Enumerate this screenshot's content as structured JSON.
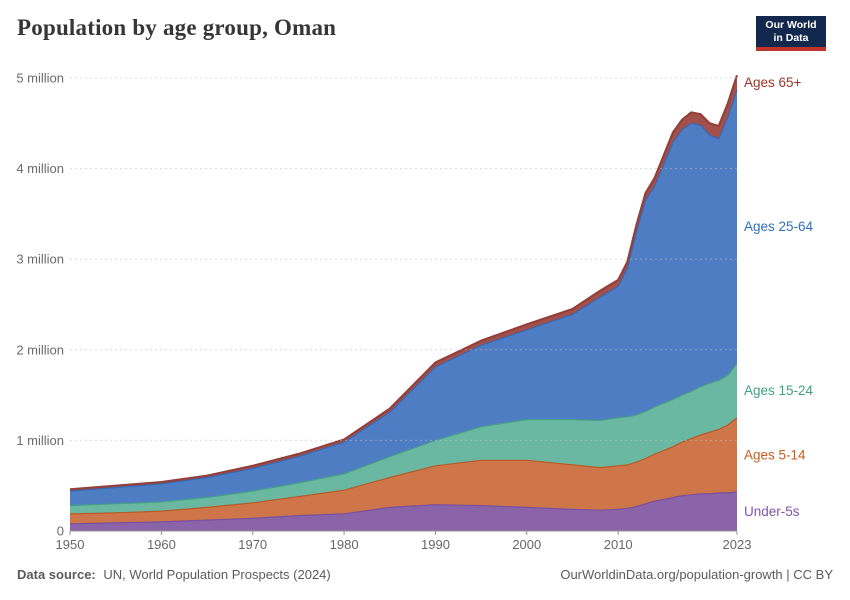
{
  "header": {
    "title": "Population by age group, Oman"
  },
  "logo": {
    "line1": "Our World",
    "line2": "in Data",
    "bg_color": "#12294d",
    "bar_color": "#c0332b"
  },
  "footer": {
    "source_label": "Data source:",
    "source_text": " UN, World Population Prospects (2024)",
    "credit": "OurWorldinData.org/population-growth | CC BY"
  },
  "chart_data": {
    "type": "area",
    "stacked": true,
    "title": "Population by age group, Oman",
    "unit": "people (millions)",
    "grid": "dashed horizontal",
    "legend_position": "right edge labels",
    "xlim": [
      1950,
      2023
    ],
    "ylim": [
      0,
      5.2
    ],
    "x": [
      1950,
      1955,
      1960,
      1965,
      1970,
      1975,
      1980,
      1985,
      1990,
      1995,
      2000,
      2005,
      2008,
      2010,
      2011,
      2012,
      2013,
      2014,
      2015,
      2016,
      2017,
      2018,
      2019,
      2020,
      2021,
      2022,
      2023
    ],
    "series": [
      {
        "id": "under-5s",
        "name": "Under-5s",
        "color": "#8a63a9",
        "stroke": "#7a4fa0",
        "label_color": "#8454ad",
        "values": [
          0.08,
          0.09,
          0.1,
          0.12,
          0.14,
          0.17,
          0.19,
          0.26,
          0.29,
          0.28,
          0.26,
          0.24,
          0.23,
          0.24,
          0.25,
          0.27,
          0.3,
          0.33,
          0.35,
          0.37,
          0.39,
          0.4,
          0.41,
          0.41,
          0.42,
          0.42,
          0.43
        ]
      },
      {
        "id": "ages-5-14",
        "name": "Ages 5-14",
        "color": "#ce7649",
        "stroke": "#b85a27",
        "label_color": "#c85e20",
        "values": [
          0.11,
          0.11,
          0.12,
          0.14,
          0.17,
          0.21,
          0.26,
          0.33,
          0.43,
          0.5,
          0.52,
          0.49,
          0.47,
          0.48,
          0.48,
          0.49,
          0.5,
          0.52,
          0.54,
          0.56,
          0.59,
          0.62,
          0.65,
          0.68,
          0.7,
          0.75,
          0.82
        ]
      },
      {
        "id": "ages-15-24",
        "name": "Ages 15-24",
        "color": "#6bb8a2",
        "stroke": "#47a184",
        "label_color": "#3fa27f",
        "values": [
          0.09,
          0.1,
          0.1,
          0.11,
          0.13,
          0.15,
          0.18,
          0.23,
          0.28,
          0.37,
          0.45,
          0.5,
          0.52,
          0.53,
          0.53,
          0.52,
          0.52,
          0.52,
          0.52,
          0.52,
          0.52,
          0.52,
          0.53,
          0.54,
          0.54,
          0.55,
          0.6
        ]
      },
      {
        "id": "ages-25-64",
        "name": "Ages 25-64",
        "color": "#4f7dc3",
        "stroke": "#3569b2",
        "label_color": "#2f6fbc",
        "values": [
          0.16,
          0.18,
          0.2,
          0.22,
          0.25,
          0.29,
          0.35,
          0.49,
          0.81,
          0.9,
          0.99,
          1.16,
          1.36,
          1.45,
          1.64,
          2.02,
          2.33,
          2.44,
          2.64,
          2.84,
          2.93,
          2.96,
          2.89,
          2.74,
          2.67,
          2.85,
          3.02
        ]
      },
      {
        "id": "ages-65plus",
        "name": "Ages 65+",
        "color": "#a34f4b",
        "stroke": "#943f39",
        "label_color": "#993526",
        "values": [
          0.02,
          0.02,
          0.02,
          0.02,
          0.03,
          0.03,
          0.03,
          0.04,
          0.05,
          0.05,
          0.06,
          0.06,
          0.07,
          0.07,
          0.07,
          0.08,
          0.08,
          0.09,
          0.1,
          0.11,
          0.11,
          0.12,
          0.12,
          0.13,
          0.14,
          0.15,
          0.16
        ]
      }
    ],
    "yticks": [
      {
        "v": 0,
        "label": "0"
      },
      {
        "v": 1,
        "label": "1 million"
      },
      {
        "v": 2,
        "label": "2 million"
      },
      {
        "v": 3,
        "label": "3 million"
      },
      {
        "v": 4,
        "label": "4 million"
      },
      {
        "v": 5,
        "label": "5 million"
      }
    ],
    "xticks": [
      {
        "v": 1950,
        "label": "1950"
      },
      {
        "v": 1960,
        "label": "1960"
      },
      {
        "v": 1970,
        "label": "1970"
      },
      {
        "v": 1980,
        "label": "1980"
      },
      {
        "v": 1990,
        "label": "1990"
      },
      {
        "v": 2000,
        "label": "2000"
      },
      {
        "v": 2010,
        "label": "2010"
      },
      {
        "v": 2023,
        "label": "2023"
      }
    ]
  }
}
